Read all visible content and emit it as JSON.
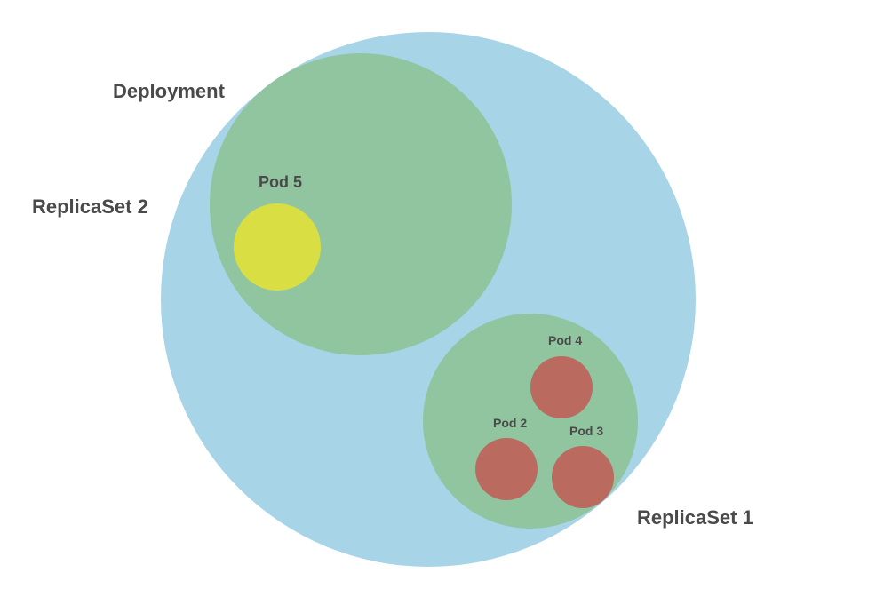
{
  "diagram": {
    "labels": {
      "deployment": "Deployment",
      "replicaset2": "ReplicaSet 2",
      "replicaset1": "ReplicaSet 1",
      "pod5": "Pod 5",
      "pod4": "Pod 4",
      "pod2": "Pod 2",
      "pod3": "Pod 3"
    },
    "colors": {
      "deployment": "#a8d4e8",
      "replicaset": "#90c59f",
      "pod_new": "#d9df43",
      "pod_old": "#bb6a60",
      "text": "#4a4a4a"
    }
  }
}
